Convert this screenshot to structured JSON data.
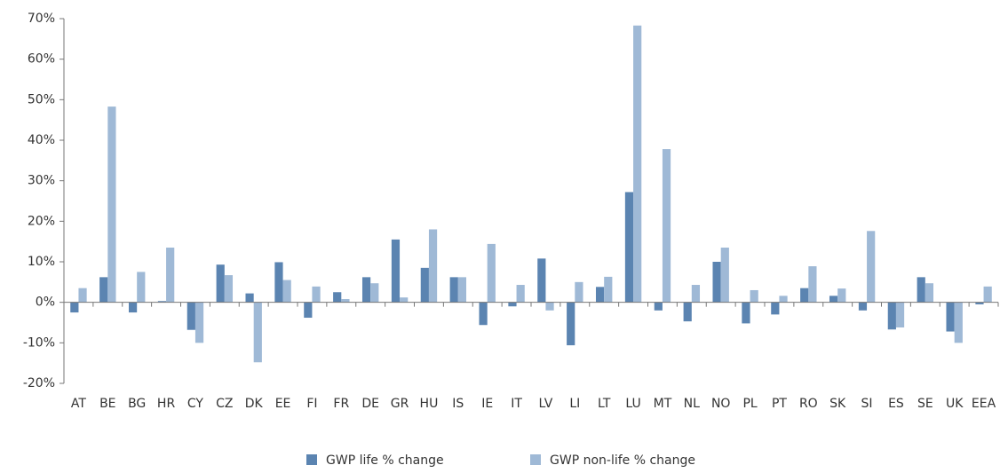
{
  "chart_data": {
    "type": "bar",
    "categories": [
      "AT",
      "BE",
      "BG",
      "HR",
      "CY",
      "CZ",
      "DK",
      "EE",
      "FI",
      "FR",
      "DE",
      "GR",
      "HU",
      "IS",
      "IE",
      "IT",
      "LV",
      "LI",
      "LT",
      "LU",
      "MT",
      "NL",
      "NO",
      "PL",
      "PT",
      "RO",
      "SK",
      "SI",
      "ES",
      "SE",
      "UK",
      "EEA"
    ],
    "series": [
      {
        "name": "GWP life % change",
        "color": "#5b84b1",
        "values": [
          -2.5,
          6.2,
          -2.5,
          0.3,
          -6.8,
          9.3,
          2.2,
          9.9,
          -3.8,
          2.5,
          6.2,
          15.5,
          8.5,
          6.2,
          -5.6,
          -1,
          10.8,
          -10.6,
          3.8,
          27.2,
          -2,
          -4.7,
          10,
          -5.2,
          -3,
          3.5,
          1.6,
          -2,
          -6.7,
          6.2,
          -7.2,
          -0.5
        ]
      },
      {
        "name": "GWP non-life % change",
        "color": "#9fb9d6",
        "values": [
          3.5,
          48.3,
          7.5,
          13.5,
          -10,
          6.7,
          -14.8,
          5.5,
          3.9,
          0.8,
          4.7,
          1.2,
          18,
          6.2,
          14.4,
          4.3,
          -2,
          5,
          6.3,
          68.3,
          37.8,
          4.3,
          13.5,
          3,
          1.6,
          8.9,
          3.4,
          17.6,
          -6.2,
          4.7,
          -10,
          3.9
        ]
      }
    ],
    "ylim": [
      -20,
      70
    ],
    "yticks": [
      {
        "value": -20,
        "label": "-20%"
      },
      {
        "value": -10,
        "label": "-10%"
      },
      {
        "value": 0,
        "label": "0%"
      },
      {
        "value": 10,
        "label": "10%"
      },
      {
        "value": 20,
        "label": "20%"
      },
      {
        "value": 30,
        "label": "30%"
      },
      {
        "value": 40,
        "label": "40%"
      },
      {
        "value": 50,
        "label": "50%"
      },
      {
        "value": 60,
        "label": "60%"
      },
      {
        "value": 70,
        "label": "70%"
      }
    ],
    "grid": false,
    "legend": "bottom"
  }
}
